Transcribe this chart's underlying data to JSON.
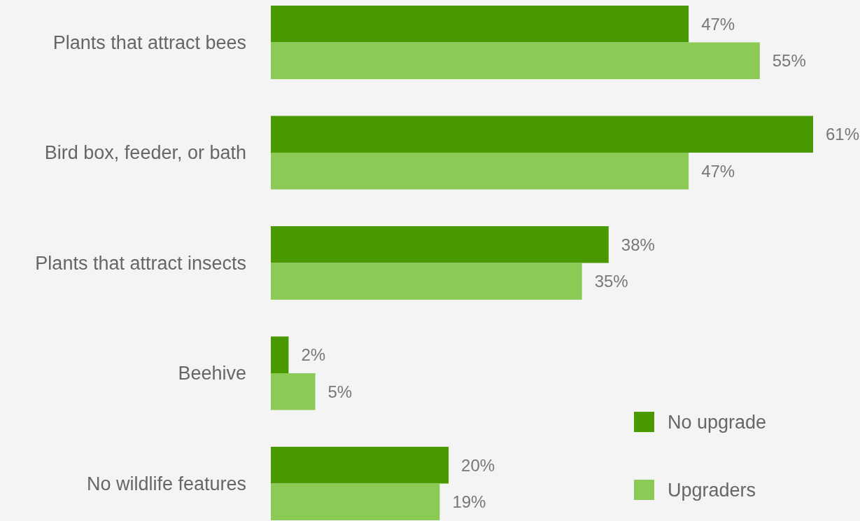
{
  "chart_data": {
    "type": "bar",
    "orientation": "horizontal",
    "categories": [
      "Plants that attract bees",
      "Bird box, feeder, or bath",
      "Plants that attract insects",
      "Beehive",
      "No wildlife features"
    ],
    "series": [
      {
        "name": "No upgrade",
        "color": "#4a9900",
        "values": [
          47,
          61,
          38,
          2,
          20
        ],
        "value_labels": [
          "47%",
          "61%",
          "38%",
          "2%",
          "20%"
        ]
      },
      {
        "name": "Upgraders",
        "color": "#8cca56",
        "values": [
          55,
          47,
          35,
          5,
          19
        ],
        "value_labels": [
          "55%",
          "47%",
          "35%",
          "5%",
          "19%"
        ]
      }
    ],
    "legend": "bottom right"
  }
}
